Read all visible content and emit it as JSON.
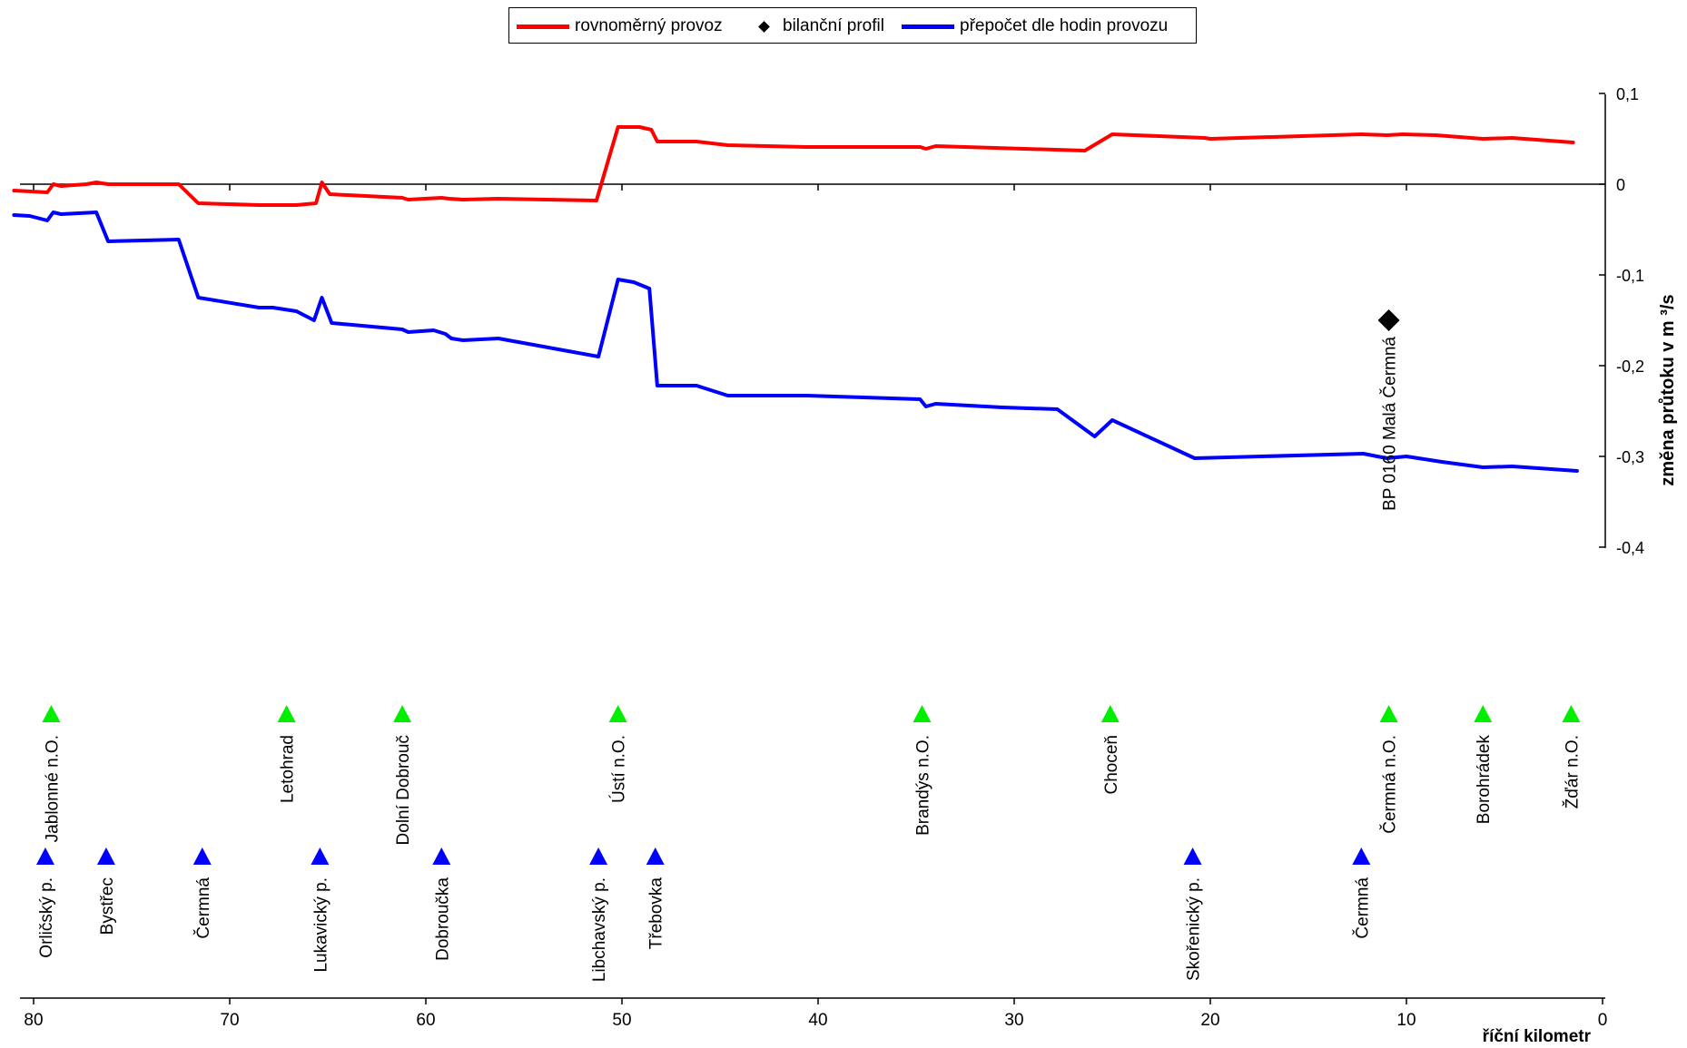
{
  "chart_data": {
    "type": "line",
    "xlabel": "říční kilometr",
    "ylabel": "změna průtoku v m ³/s",
    "x_axis": {
      "min": 0,
      "max": 81,
      "reversed": true,
      "ticks": [
        80,
        70,
        60,
        50,
        40,
        30,
        20,
        10,
        0
      ]
    },
    "y_axis": {
      "min": -0.4,
      "max": 0.1,
      "ticks": [
        0.1,
        0,
        -0.1,
        -0.2,
        -0.3,
        -0.4
      ],
      "tick_labels": [
        "0,1",
        "0",
        "-0,1",
        "-0,2",
        "-0,3",
        "-0,4"
      ],
      "position": "right"
    },
    "grid": false,
    "legend": {
      "position": "top-center",
      "entries": [
        {
          "label": "rovnoměrný provoz",
          "color": "#ff0000",
          "marker": "line"
        },
        {
          "label": "bilanční profil",
          "color": "#000000",
          "marker": "diamond"
        },
        {
          "label": "přepočet dle hodin provozu",
          "color": "#0000ff",
          "marker": "line"
        }
      ]
    },
    "series": [
      {
        "name": "rovnoměrný provoz",
        "color": "#ff0000",
        "points": [
          [
            81.0,
            -0.007
          ],
          [
            79.3,
            -0.009
          ],
          [
            79.0,
            0.0
          ],
          [
            78.6,
            -0.002
          ],
          [
            77.3,
            0.0
          ],
          [
            76.8,
            0.002
          ],
          [
            76.2,
            0.0
          ],
          [
            72.6,
            0.0
          ],
          [
            71.6,
            -0.021
          ],
          [
            68.5,
            -0.023
          ],
          [
            66.6,
            -0.023
          ],
          [
            65.6,
            -0.021
          ],
          [
            65.3,
            0.002
          ],
          [
            64.9,
            -0.011
          ],
          [
            61.2,
            -0.015
          ],
          [
            60.9,
            -0.017
          ],
          [
            59.2,
            -0.015
          ],
          [
            58.8,
            -0.016
          ],
          [
            58.1,
            -0.017
          ],
          [
            56.3,
            -0.016
          ],
          [
            51.3,
            -0.018
          ],
          [
            50.2,
            0.063
          ],
          [
            49.1,
            0.063
          ],
          [
            48.5,
            0.06
          ],
          [
            48.2,
            0.047
          ],
          [
            46.2,
            0.047
          ],
          [
            44.6,
            0.043
          ],
          [
            40.6,
            0.041
          ],
          [
            34.8,
            0.041
          ],
          [
            34.5,
            0.039
          ],
          [
            34.0,
            0.042
          ],
          [
            26.4,
            0.037
          ],
          [
            25.0,
            0.055
          ],
          [
            20.3,
            0.051
          ],
          [
            20.0,
            0.05
          ],
          [
            12.3,
            0.055
          ],
          [
            11.0,
            0.054
          ],
          [
            10.2,
            0.055
          ],
          [
            8.5,
            0.054
          ],
          [
            6.1,
            0.05
          ],
          [
            4.6,
            0.051
          ],
          [
            1.5,
            0.046
          ]
        ]
      },
      {
        "name": "přepočet dle hodin provozu",
        "color": "#0000ff",
        "points": [
          [
            81.0,
            -0.034
          ],
          [
            80.2,
            -0.035
          ],
          [
            79.3,
            -0.04
          ],
          [
            79.0,
            -0.031
          ],
          [
            78.6,
            -0.033
          ],
          [
            76.8,
            -0.031
          ],
          [
            76.2,
            -0.063
          ],
          [
            72.6,
            -0.061
          ],
          [
            71.6,
            -0.125
          ],
          [
            68.5,
            -0.136
          ],
          [
            67.8,
            -0.136
          ],
          [
            66.6,
            -0.14
          ],
          [
            65.7,
            -0.15
          ],
          [
            65.3,
            -0.125
          ],
          [
            64.8,
            -0.153
          ],
          [
            61.2,
            -0.16
          ],
          [
            60.9,
            -0.163
          ],
          [
            59.6,
            -0.161
          ],
          [
            59.0,
            -0.165
          ],
          [
            58.7,
            -0.17
          ],
          [
            58.1,
            -0.172
          ],
          [
            56.3,
            -0.17
          ],
          [
            51.2,
            -0.19
          ],
          [
            50.2,
            -0.105
          ],
          [
            49.4,
            -0.108
          ],
          [
            48.6,
            -0.115
          ],
          [
            48.2,
            -0.222
          ],
          [
            46.2,
            -0.222
          ],
          [
            44.6,
            -0.233
          ],
          [
            40.6,
            -0.233
          ],
          [
            34.8,
            -0.237
          ],
          [
            34.5,
            -0.245
          ],
          [
            34.0,
            -0.242
          ],
          [
            30.6,
            -0.246
          ],
          [
            27.8,
            -0.248
          ],
          [
            25.9,
            -0.278
          ],
          [
            25.0,
            -0.26
          ],
          [
            20.8,
            -0.302
          ],
          [
            12.2,
            -0.297
          ],
          [
            11.0,
            -0.302
          ],
          [
            10.0,
            -0.3
          ],
          [
            8.2,
            -0.306
          ],
          [
            6.1,
            -0.312
          ],
          [
            4.6,
            -0.311
          ],
          [
            1.3,
            -0.316
          ]
        ]
      }
    ],
    "balance_point": {
      "x": 10.9,
      "y": -0.15,
      "label": "BP 0160 Malá Čermná"
    },
    "settlements": [
      {
        "km": 79.1,
        "label": "Jablonné n.O."
      },
      {
        "km": 67.1,
        "label": "Letohrad"
      },
      {
        "km": 61.2,
        "label": "Dolní Dobrouč"
      },
      {
        "km": 50.2,
        "label": "Ústí n.O."
      },
      {
        "km": 34.7,
        "label": "Brandýs n.O."
      },
      {
        "km": 25.1,
        "label": "Choceň"
      },
      {
        "km": 10.9,
        "label": "Čermná n.O."
      },
      {
        "km": 6.1,
        "label": "Borohrádek"
      },
      {
        "km": 1.6,
        "label": "Žďár n.O."
      }
    ],
    "tributaries": [
      {
        "km": 79.4,
        "label": "Orličský p."
      },
      {
        "km": 76.3,
        "label": "Bystřec"
      },
      {
        "km": 71.4,
        "label": "Čermná"
      },
      {
        "km": 65.4,
        "label": "Lukavický p."
      },
      {
        "km": 59.2,
        "label": "Dobroučka"
      },
      {
        "km": 51.2,
        "label": "Libchavský p."
      },
      {
        "km": 48.3,
        "label": "Třebovka"
      },
      {
        "km": 20.9,
        "label": "Skořenický p."
      },
      {
        "km": 12.3,
        "label": "Čermná"
      }
    ]
  }
}
